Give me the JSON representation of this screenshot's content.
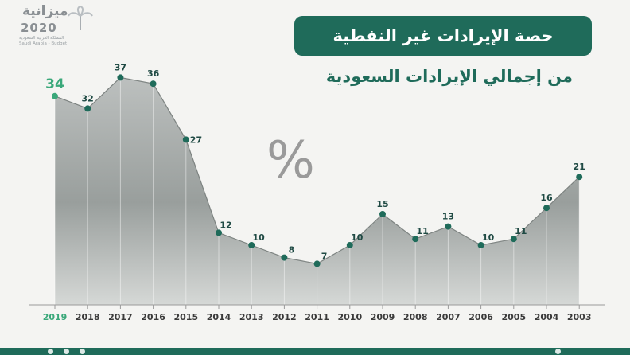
{
  "logo": {
    "name": "ميزانية",
    "year": "2020",
    "line1": "المملكة العربية السعودية",
    "line2": "Saudi Arabia - Budget"
  },
  "title": "حصة الإيرادات غير النفطية",
  "subtitle": "من إجمالي الإيرادات السعودية",
  "unit_symbol": "%",
  "colors": {
    "brand": "#1f6b5a",
    "highlight": "#3aa87a",
    "marker": "#1f6b5a",
    "label": "#1f4a44",
    "axis": "#9a9a9a",
    "background": "#f4f4f2"
  },
  "chart_data": {
    "type": "area",
    "x": [
      "2019",
      "2018",
      "2017",
      "2016",
      "2015",
      "2014",
      "2013",
      "2012",
      "2011",
      "2010",
      "2009",
      "2008",
      "2007",
      "2006",
      "2005",
      "2004",
      "2003"
    ],
    "values": [
      34,
      32,
      37,
      36,
      27,
      12,
      10,
      8,
      7,
      10,
      15,
      11,
      13,
      10,
      11,
      16,
      21
    ],
    "highlight": "2019",
    "ylabel": "",
    "xlabel": "",
    "grid": false
  }
}
